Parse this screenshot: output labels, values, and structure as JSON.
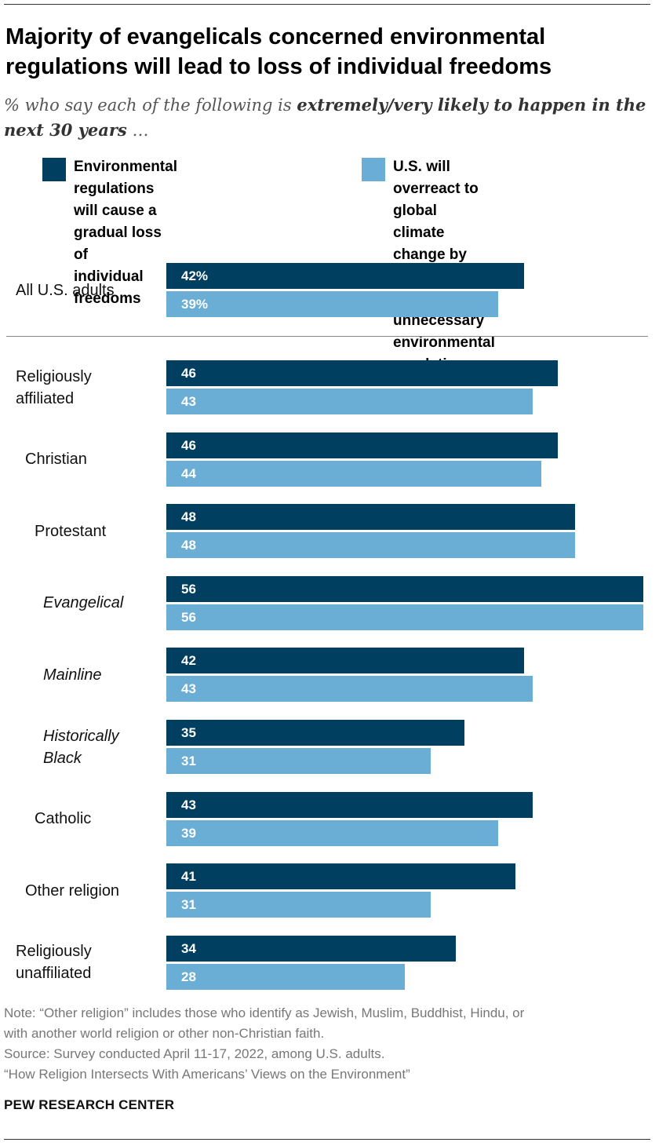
{
  "title": "Majority of evangelicals concerned environmental regulations will lead to loss of individual freedoms",
  "subtitle_plain": "% who say each of the following is ",
  "subtitle_bold": "extremely/very likely to happen in the next 30 years",
  "subtitle_end": " …",
  "colors": {
    "series1": "#003f5f",
    "series2": "#6aadd5"
  },
  "chart_data": {
    "type": "bar",
    "orientation": "horizontal",
    "title": "Majority of evangelicals concerned environmental regulations will lead to loss of individual freedoms",
    "categories": [
      "All U.S. adults",
      "Religiously\naffiliated",
      "Christian",
      "Protestant",
      "Evangelical",
      "Mainline",
      "Historically\nBlack",
      "Catholic",
      "Other religion",
      "Religiously\nunaffiliated"
    ],
    "category_italic": [
      false,
      false,
      false,
      false,
      true,
      true,
      true,
      false,
      false,
      false
    ],
    "category_indent": [
      0,
      0,
      1,
      2,
      3,
      3,
      3,
      2,
      1,
      0
    ],
    "series": [
      {
        "name": "Environmental regulations\nwill cause a gradual loss of\nindividual freedoms",
        "values": [
          42,
          46,
          46,
          48,
          56,
          42,
          35,
          43,
          41,
          34
        ],
        "labels": [
          "42%",
          "46",
          "46",
          "48",
          "56",
          "42",
          "35",
          "43",
          "41",
          "34"
        ]
      },
      {
        "name": "U.S. will overreact to global\nclimate change by creating\nmany unnecessary\nenvironmental regulations",
        "values": [
          39,
          43,
          44,
          48,
          56,
          43,
          31,
          39,
          31,
          28
        ],
        "labels": [
          "39%",
          "43",
          "44",
          "48",
          "56",
          "43",
          "31",
          "39",
          "31",
          "28"
        ]
      }
    ],
    "xlim": [
      0,
      56
    ],
    "legend_position": "top"
  },
  "notes": [
    "Note: “Other religion” includes those who identify as Jewish, Muslim, Buddhist, Hindu, or\nwith another world religion or other non-Christian faith.",
    "Source: Survey conducted April 11-17, 2022, among U.S. adults.",
    "“How Religion Intersects With Americans’ Views on the Environment”"
  ],
  "brand": "PEW RESEARCH CENTER"
}
